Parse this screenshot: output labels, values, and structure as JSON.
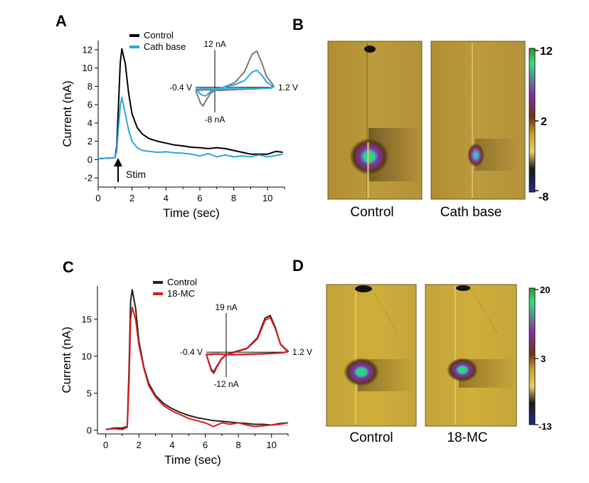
{
  "panels": {
    "A": {
      "letter": "A",
      "chart_data": {
        "type": "line",
        "xlabel": "Time (sec)",
        "ylabel": "Current (nA)",
        "xlim": [
          0,
          11
        ],
        "ylim": [
          -3,
          13
        ],
        "xticks": [
          0,
          2,
          4,
          6,
          8,
          10
        ],
        "yticks": [
          -2,
          0,
          2,
          4,
          6,
          8,
          10,
          12
        ],
        "legend_position": "top",
        "series": [
          {
            "name": "Control",
            "color": "#000000",
            "x": [
              0,
              0.5,
              1.0,
              1.1,
              1.2,
              1.3,
              1.4,
              1.6,
              1.8,
              2.0,
              2.3,
              2.6,
              3.0,
              3.5,
              4.0,
              4.5,
              5.0,
              5.5,
              6.0,
              6.5,
              7.0,
              7.5,
              8.0,
              8.5,
              9.0,
              9.5,
              10.0,
              10.5,
              10.9
            ],
            "y": [
              0.1,
              0.15,
              0.2,
              1.5,
              6.0,
              10.5,
              12.1,
              10.5,
              7.2,
              5.0,
              3.5,
              2.8,
              2.3,
              2.0,
              1.8,
              1.6,
              1.5,
              1.35,
              1.3,
              1.2,
              1.3,
              1.2,
              1.0,
              0.8,
              0.6,
              0.6,
              0.6,
              0.9,
              0.8
            ]
          },
          {
            "name": "Cath base",
            "color": "#29a8e0",
            "x": [
              0,
              0.5,
              1.0,
              1.1,
              1.2,
              1.3,
              1.4,
              1.6,
              1.8,
              2.0,
              2.3,
              2.6,
              3.0,
              3.5,
              4.0,
              4.5,
              5.0,
              5.5,
              6.0,
              6.5,
              7.0,
              7.5,
              8.0,
              8.5,
              9.0,
              9.5,
              10.0,
              10.5,
              10.9
            ],
            "y": [
              0.1,
              0.15,
              0.2,
              1.0,
              3.5,
              5.8,
              6.8,
              5.0,
              3.2,
              2.0,
              1.3,
              1.0,
              0.9,
              0.8,
              0.85,
              0.75,
              0.7,
              0.6,
              0.4,
              0.65,
              0.3,
              0.5,
              0.3,
              0.4,
              0.3,
              0.5,
              0.3,
              0.45,
              0.6
            ]
          }
        ],
        "annotation": {
          "text": "Stim",
          "x": 1.2
        },
        "inset": {
          "top_label": "12 nA",
          "bottom_label": "-8 nA",
          "left_label": "-0.4 V",
          "right_label": "1.2 V",
          "type": "cyclic voltammogram",
          "xlim": [
            -0.4,
            1.2
          ],
          "ylim": [
            -8,
            12
          ],
          "series": [
            {
              "name": "Control",
              "color": "#7a7a7a",
              "x": [
                -0.4,
                -0.3,
                -0.25,
                -0.2,
                -0.1,
                0.0,
                0.2,
                0.4,
                0.6,
                0.75,
                0.85,
                0.95,
                1.05,
                1.15,
                1.2,
                1.15,
                1.0,
                0.8,
                0.6,
                0.3,
                0.1,
                0.0,
                -0.2,
                -0.4
              ],
              "y": [
                -1.0,
                -5.0,
                -6.0,
                -4.5,
                -2.0,
                -0.8,
                0.2,
                1.5,
                5.0,
                10.5,
                11.6,
                8.0,
                3.5,
                1.5,
                0.3,
                -0.2,
                -0.3,
                -0.5,
                -0.6,
                -0.8,
                -1.0,
                -0.9,
                -0.8,
                -1.0
              ]
            },
            {
              "name": "Cath base",
              "color": "#29a8e0",
              "x": [
                -0.4,
                -0.3,
                -0.2,
                -0.1,
                0.0,
                0.2,
                0.4,
                0.6,
                0.75,
                0.85,
                0.95,
                1.05,
                1.15,
                1.2,
                1.1,
                0.9,
                0.6,
                0.3,
                0.0,
                -0.2,
                -0.4
              ],
              "y": [
                -0.5,
                -2.2,
                -2.8,
                -1.5,
                -0.6,
                0.2,
                0.8,
                2.2,
                4.8,
                5.5,
                4.0,
                1.8,
                0.6,
                0.2,
                -0.2,
                -0.3,
                -0.4,
                -0.5,
                -0.5,
                -0.4,
                -0.5
              ]
            }
          ]
        }
      }
    },
    "B": {
      "letter": "B",
      "captions": [
        "Control",
        "Cath base"
      ],
      "colorbar": {
        "max_label": "12",
        "mid_label": "2",
        "min_label": "-8"
      },
      "colors": {
        "background": "#b59a3a",
        "hot": "#34e07a",
        "mid": "#8a2ea8",
        "dark": "#3e2e15"
      }
    },
    "C": {
      "letter": "C",
      "chart_data": {
        "type": "line",
        "xlabel": "Time (sec)",
        "ylabel": "Current (nA)",
        "xlim": [
          -0.5,
          11
        ],
        "ylim": [
          -0.5,
          19.5
        ],
        "xticks": [
          0,
          2,
          4,
          6,
          8,
          10
        ],
        "yticks": [
          0,
          5,
          10,
          15
        ],
        "legend_position": "top",
        "series": [
          {
            "name": "Control",
            "color": "#222222",
            "x": [
              0,
              0.5,
              1.0,
              1.3,
              1.4,
              1.5,
              1.6,
              1.8,
              2.0,
              2.3,
              2.6,
              3.0,
              3.5,
              4.0,
              4.5,
              5.0,
              5.5,
              6.0,
              6.5,
              7.0,
              7.5,
              8.0,
              8.5,
              9.0,
              9.5,
              10.0,
              10.5,
              11.0
            ],
            "y": [
              0.1,
              0.3,
              0.3,
              0.5,
              8.0,
              17.5,
              19.0,
              16.5,
              12.0,
              8.5,
              6.3,
              4.7,
              3.6,
              2.9,
              2.4,
              2.0,
              1.7,
              1.5,
              1.3,
              1.2,
              1.1,
              1.0,
              0.9,
              0.8,
              0.8,
              0.7,
              0.9,
              1.0
            ]
          },
          {
            "name": "18-MC",
            "color": "#e01b1b",
            "x": [
              0,
              0.5,
              1.0,
              1.3,
              1.4,
              1.5,
              1.6,
              1.8,
              2.0,
              2.3,
              2.6,
              3.0,
              3.5,
              4.0,
              4.5,
              5.0,
              5.5,
              6.0,
              6.5,
              7.0,
              7.5,
              8.0,
              8.5,
              9.0,
              9.5,
              10.0,
              10.5,
              11.0
            ],
            "y": [
              0.1,
              0.2,
              0.1,
              0.4,
              6.0,
              15.0,
              16.6,
              15.0,
              11.5,
              8.3,
              6.0,
              4.5,
              3.3,
              2.6,
              2.1,
              1.6,
              1.3,
              1.0,
              0.5,
              1.0,
              0.8,
              1.0,
              0.7,
              0.5,
              0.6,
              0.7,
              0.8,
              1.0
            ]
          }
        ],
        "inset": {
          "top_label": "19 nA",
          "bottom_label": "-12 nA",
          "left_label": "-0.4 V",
          "right_label": "1.2 V",
          "type": "cyclic voltammogram",
          "xlim": [
            -0.4,
            1.2
          ],
          "ylim": [
            -12,
            19
          ],
          "series": [
            {
              "name": "Control",
              "color": "#222222",
              "x": [
                -0.4,
                -0.3,
                -0.25,
                -0.2,
                -0.1,
                0.0,
                0.2,
                0.4,
                0.6,
                0.75,
                0.85,
                0.95,
                1.05,
                1.15,
                1.2,
                1.1,
                0.9,
                0.6,
                0.3,
                0.1,
                0.0,
                -0.2,
                -0.4
              ],
              "y": [
                -1.0,
                -8.5,
                -9.5,
                -7.0,
                -3.0,
                -1.0,
                0.5,
                2.0,
                7.0,
                16.5,
                17.8,
                12.0,
                4.0,
                1.5,
                0.5,
                -0.2,
                -0.5,
                -0.8,
                -1.0,
                -1.2,
                -1.0,
                -0.8,
                -1.0
              ]
            },
            {
              "name": "18-MC",
              "color": "#e01b1b",
              "x": [
                -0.4,
                -0.3,
                -0.25,
                -0.2,
                -0.1,
                0.0,
                0.2,
                0.4,
                0.6,
                0.75,
                0.85,
                0.95,
                1.05,
                1.15,
                1.2,
                1.1,
                0.9,
                0.6,
                0.3,
                0.1,
                0.0,
                -0.2,
                -0.4
              ],
              "y": [
                -1.2,
                -9.0,
                -10.2,
                -7.5,
                -3.2,
                -1.2,
                0.3,
                1.8,
                6.5,
                15.5,
                16.8,
                11.5,
                3.8,
                1.3,
                0.4,
                -0.3,
                -0.6,
                -0.9,
                -1.1,
                -1.3,
                -1.1,
                -0.9,
                -1.2
              ]
            }
          ]
        }
      }
    },
    "D": {
      "letter": "D",
      "captions": [
        "Control",
        "18-MC"
      ],
      "colorbar": {
        "max_label": "20",
        "mid_label": "3",
        "min_label": "-13"
      },
      "colors": {
        "background": "#c9a832",
        "hot": "#34e07a",
        "mid": "#8a2ea8",
        "dark": "#3e2e15"
      }
    }
  }
}
